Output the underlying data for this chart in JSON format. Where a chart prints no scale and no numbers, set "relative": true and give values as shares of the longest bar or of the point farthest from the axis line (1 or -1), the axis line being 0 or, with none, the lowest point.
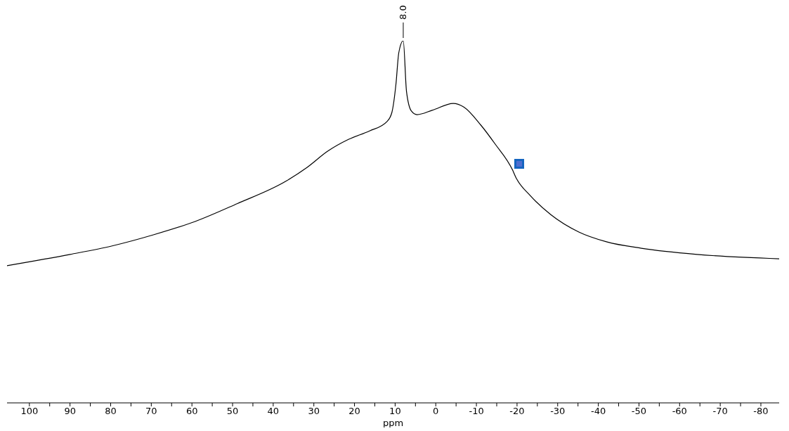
{
  "chart_data": {
    "type": "line",
    "relative": true,
    "xlabel": "ppm",
    "xlim": [
      105.5,
      -84.5
    ],
    "xticks": [
      100,
      {
        "value": 95,
        "label": null
      },
      90,
      {
        "value": 85,
        "label": null
      },
      80,
      {
        "value": 75,
        "label": null
      },
      70,
      {
        "value": 65,
        "label": null
      },
      60,
      {
        "value": 55,
        "label": null
      },
      50,
      {
        "value": 45,
        "label": null
      },
      40,
      {
        "value": 35,
        "label": null
      },
      30,
      {
        "value": 25,
        "label": null
      },
      20,
      {
        "value": 15,
        "label": null
      },
      10,
      {
        "value": 5,
        "label": null
      },
      0,
      {
        "value": -5,
        "label": null
      },
      -10,
      {
        "value": -15,
        "label": null
      },
      -20,
      {
        "value": -25,
        "label": null
      },
      -30,
      {
        "value": -35,
        "label": null
      },
      -40,
      {
        "value": -45,
        "label": null
      },
      -50,
      {
        "value": -55,
        "label": null
      },
      -60,
      {
        "value": -65,
        "label": null
      },
      -70,
      {
        "value": -75,
        "label": null
      },
      -80
    ],
    "x": [
      105.5,
      90,
      79.8,
      69.5,
      59.2,
      48.9,
      36.9,
      31.7,
      26.6,
      21.4,
      16.3,
      12.0,
      10.8,
      9.8,
      9.1,
      8.0,
      7.2,
      6.0,
      4.6,
      0.9,
      -4.3,
      -6.9,
      -11.1,
      -14.6,
      -18.9,
      -19.7,
      -23.2,
      -28.3,
      -35.2,
      -42.0,
      -50.6,
      -64.3,
      -84.5
    ],
    "values": [
      0.379,
      0.41,
      0.433,
      0.464,
      0.501,
      0.55,
      0.612,
      0.65,
      0.695,
      0.728,
      0.751,
      0.777,
      0.802,
      0.88,
      0.967,
      1.0,
      0.86,
      0.806,
      0.796,
      0.808,
      0.827,
      0.817,
      0.767,
      0.715,
      0.643,
      0.623,
      0.573,
      0.52,
      0.472,
      0.445,
      0.427,
      0.41,
      0.398
    ],
    "color": "#000000",
    "annotations": [
      {
        "text": "8.0",
        "x": 8.0,
        "y": 1.0
      }
    ]
  }
}
